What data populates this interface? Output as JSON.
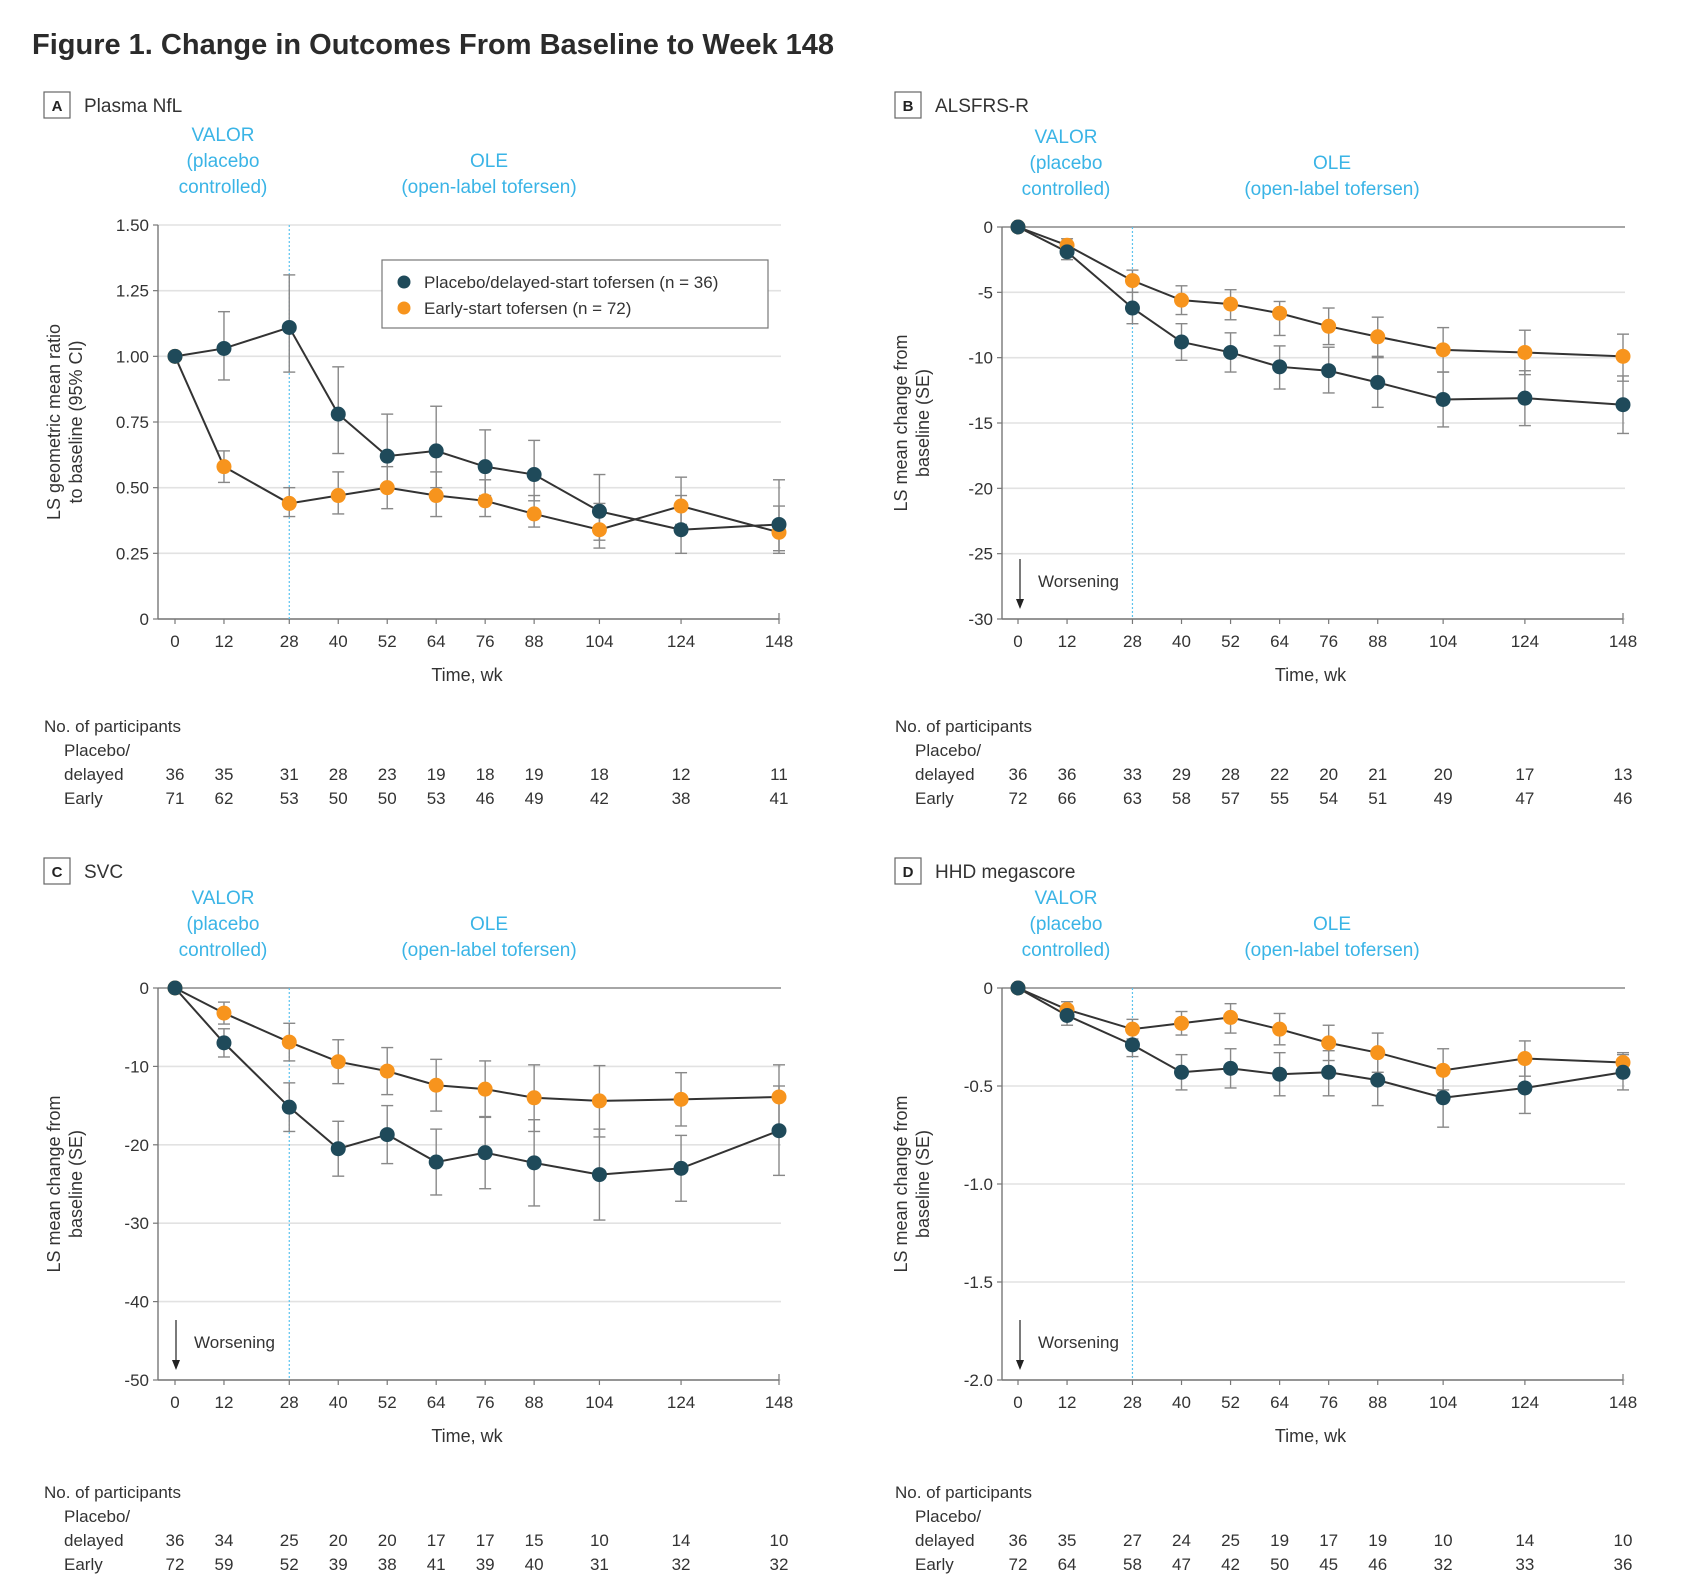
{
  "figure": {
    "title": "Figure 1.  Change in Outcomes From Baseline to Week 148"
  },
  "colors": {
    "placebo": "#1f4a5a",
    "early": "#f7941d",
    "period_text": "#3ab4e6",
    "valor_line": "#5bc3ee",
    "grid": "#e2e2e2",
    "axis": "#777777",
    "line": "#333333",
    "errorbar": "#888888"
  },
  "periods": {
    "valor": [
      "VALOR",
      "(placebo",
      "controlled)"
    ],
    "ole": [
      "OLE",
      "(open-label tofersen)"
    ]
  },
  "legend": {
    "placebo": "Placebo/delayed-start tofersen (n = 36)",
    "early": "Early-start tofersen (n = 72)"
  },
  "table_labels": {
    "header": "No. of participants",
    "placebo_line1": "Placebo/",
    "placebo_line2": "delayed",
    "early": "Early"
  },
  "worsening_label": "Worsening",
  "chart_data": [
    {
      "type": "line",
      "panel": "A",
      "title": "Plasma NfL",
      "xlabel": "Time, wk",
      "ylabel": [
        "LS geometric mean ratio",
        "to baseline (95% CI)"
      ],
      "x": [
        0,
        12,
        28,
        40,
        52,
        64,
        76,
        88,
        104,
        124,
        148
      ],
      "xticks": [
        "0",
        "12",
        "28",
        "40",
        "52",
        "64",
        "76",
        "88",
        "104",
        "124",
        "148"
      ],
      "ylim": [
        0,
        1.5
      ],
      "yticks": [
        0,
        0.25,
        0.5,
        0.75,
        1.0,
        1.25,
        1.5
      ],
      "ytick_labels": [
        "0",
        "0.25",
        "0.50",
        "0.75",
        "1.00",
        "1.25",
        "1.50"
      ],
      "vline_x": 28,
      "grid": true,
      "legend_position": "top-right",
      "worsening": false,
      "series": [
        {
          "name": "Placebo/delayed-start tofersen (n = 36)",
          "key": "placebo",
          "values": [
            1.0,
            1.03,
            1.11,
            0.78,
            0.62,
            0.64,
            0.58,
            0.55,
            0.41,
            0.34,
            0.36
          ],
          "lower": [
            null,
            0.91,
            0.94,
            0.63,
            0.49,
            0.5,
            0.47,
            0.45,
            0.3,
            0.25,
            0.25
          ],
          "upper": [
            null,
            1.17,
            1.31,
            0.96,
            0.78,
            0.81,
            0.72,
            0.68,
            0.55,
            0.54,
            0.53
          ]
        },
        {
          "name": "Early-start tofersen (n = 72)",
          "key": "early",
          "values": [
            1.0,
            0.58,
            0.44,
            0.47,
            0.5,
            0.47,
            0.45,
            0.4,
            0.34,
            0.43,
            0.33
          ],
          "lower": [
            null,
            0.52,
            0.39,
            0.4,
            0.42,
            0.39,
            0.39,
            0.35,
            0.27,
            0.36,
            0.26
          ],
          "upper": [
            null,
            0.64,
            0.5,
            0.56,
            0.58,
            0.56,
            0.53,
            0.47,
            0.44,
            0.47,
            0.43
          ]
        }
      ],
      "participants": {
        "placebo": [
          "36",
          "35",
          "31",
          "28",
          "23",
          "19",
          "18",
          "19",
          "18",
          "12",
          "11"
        ],
        "early": [
          "71",
          "62",
          "53",
          "50",
          "50",
          "53",
          "46",
          "49",
          "42",
          "38",
          "41"
        ]
      }
    },
    {
      "type": "line",
      "panel": "B",
      "title": "ALSFRS-R",
      "xlabel": "Time, wk",
      "ylabel": [
        "LS mean change from",
        "baseline (SE)"
      ],
      "x": [
        0,
        12,
        28,
        40,
        52,
        64,
        76,
        88,
        104,
        124,
        148
      ],
      "xticks": [
        "0",
        "12",
        "28",
        "40",
        "52",
        "64",
        "76",
        "88",
        "104",
        "124",
        "148"
      ],
      "ylim": [
        -30,
        0
      ],
      "yticks": [
        -30,
        -25,
        -20,
        -15,
        -10,
        -5,
        0
      ],
      "ytick_labels": [
        "-30",
        "-25",
        "-20",
        "-15",
        "-10",
        "-5",
        "0"
      ],
      "vline_x": 28,
      "grid": true,
      "worsening": true,
      "series": [
        {
          "name": "Placebo/delayed-start tofersen (n = 36)",
          "key": "placebo",
          "values": [
            0,
            -1.9,
            -6.2,
            -8.8,
            -9.6,
            -10.7,
            -11.0,
            -11.9,
            -13.2,
            -13.1,
            -13.6
          ],
          "lower": [
            null,
            -2.5,
            -7.4,
            -10.2,
            -11.1,
            -12.4,
            -12.7,
            -13.8,
            -15.3,
            -15.2,
            -15.8
          ],
          "upper": [
            null,
            -1.3,
            -5.0,
            -7.4,
            -8.1,
            -9.1,
            -9.2,
            -10.0,
            -11.1,
            -11.0,
            -11.4
          ]
        },
        {
          "name": "Early-start tofersen (n = 72)",
          "key": "early",
          "values": [
            0,
            -1.4,
            -4.1,
            -5.6,
            -5.9,
            -6.6,
            -7.6,
            -8.4,
            -9.4,
            -9.6,
            -9.9
          ],
          "lower": [
            null,
            -1.9,
            -5.0,
            -6.7,
            -7.1,
            -8.3,
            -9.0,
            -9.9,
            -11.1,
            -11.3,
            -11.8
          ],
          "upper": [
            null,
            -0.9,
            -3.3,
            -4.5,
            -4.8,
            -5.7,
            -6.2,
            -6.9,
            -7.7,
            -7.9,
            -8.2
          ]
        }
      ],
      "participants": {
        "placebo": [
          "36",
          "36",
          "33",
          "29",
          "28",
          "22",
          "20",
          "21",
          "20",
          "17",
          "13"
        ],
        "early": [
          "72",
          "66",
          "63",
          "58",
          "57",
          "55",
          "54",
          "51",
          "49",
          "47",
          "46"
        ]
      }
    },
    {
      "type": "line",
      "panel": "C",
      "title": "SVC",
      "xlabel": "Time, wk",
      "ylabel": [
        "LS mean change from",
        "baseline (SE)"
      ],
      "x": [
        0,
        12,
        28,
        40,
        52,
        64,
        76,
        88,
        104,
        124,
        148
      ],
      "xticks": [
        "0",
        "12",
        "28",
        "40",
        "52",
        "64",
        "76",
        "88",
        "104",
        "124",
        "148"
      ],
      "ylim": [
        -50,
        0
      ],
      "yticks": [
        -50,
        -40,
        -30,
        -20,
        -10,
        0
      ],
      "ytick_labels": [
        "-50",
        "-40",
        "-30",
        "-20",
        "-10",
        "0"
      ],
      "vline_x": 28,
      "grid": true,
      "worsening": true,
      "series": [
        {
          "name": "Placebo/delayed-start tofersen (n = 36)",
          "key": "placebo",
          "values": [
            0,
            -7.0,
            -15.2,
            -20.5,
            -18.7,
            -22.2,
            -21.0,
            -22.3,
            -23.8,
            -23.0,
            -18.2
          ],
          "lower": [
            null,
            -8.8,
            -18.3,
            -24.0,
            -22.4,
            -26.4,
            -25.6,
            -27.8,
            -29.6,
            -27.2,
            -23.9
          ],
          "upper": [
            null,
            -5.2,
            -12.1,
            -17.0,
            -15.0,
            -18.0,
            -16.4,
            -16.8,
            -18.0,
            -18.8,
            -12.5
          ]
        },
        {
          "name": "Early-start tofersen (n = 72)",
          "key": "early",
          "values": [
            0,
            -3.2,
            -6.9,
            -9.4,
            -10.6,
            -12.4,
            -12.9,
            -14.0,
            -14.4,
            -14.2,
            -13.9
          ],
          "lower": [
            null,
            -4.6,
            -9.3,
            -12.2,
            -13.6,
            -15.7,
            -16.5,
            -18.3,
            -19.0,
            -17.6,
            -18.1
          ],
          "upper": [
            null,
            -1.8,
            -4.5,
            -6.6,
            -7.6,
            -9.1,
            -9.3,
            -9.8,
            -9.9,
            -10.8,
            -9.8
          ]
        }
      ],
      "participants": {
        "placebo": [
          "36",
          "34",
          "25",
          "20",
          "20",
          "17",
          "17",
          "15",
          "10",
          "14",
          "10"
        ],
        "early": [
          "72",
          "59",
          "52",
          "39",
          "38",
          "41",
          "39",
          "40",
          "31",
          "32",
          "32"
        ]
      }
    },
    {
      "type": "line",
      "panel": "D",
      "title": "HHD megascore",
      "xlabel": "Time, wk",
      "ylabel": [
        "LS mean change from",
        "baseline (SE)"
      ],
      "x": [
        0,
        12,
        28,
        40,
        52,
        64,
        76,
        88,
        104,
        124,
        148
      ],
      "xticks": [
        "0",
        "12",
        "28",
        "40",
        "52",
        "64",
        "76",
        "88",
        "104",
        "124",
        "148"
      ],
      "ylim": [
        -2.0,
        0
      ],
      "yticks": [
        -2.0,
        -1.5,
        -1.0,
        -0.5,
        0
      ],
      "ytick_labels": [
        "-2.0",
        "-1.5",
        "-1.0",
        "-0.5",
        "0"
      ],
      "vline_x": 28,
      "grid": true,
      "worsening": true,
      "series": [
        {
          "name": "Placebo/delayed-start tofersen (n = 36)",
          "key": "placebo",
          "values": [
            0,
            -0.14,
            -0.29,
            -0.43,
            -0.41,
            -0.44,
            -0.43,
            -0.47,
            -0.56,
            -0.51,
            -0.43
          ],
          "lower": [
            null,
            -0.19,
            -0.35,
            -0.52,
            -0.51,
            -0.55,
            -0.55,
            -0.6,
            -0.71,
            -0.64,
            -0.52
          ],
          "upper": [
            null,
            -0.09,
            -0.23,
            -0.34,
            -0.31,
            -0.33,
            -0.32,
            -0.34,
            -0.42,
            -0.38,
            -0.34
          ]
        },
        {
          "name": "Early-start tofersen (n = 72)",
          "key": "early",
          "values": [
            0,
            -0.11,
            -0.21,
            -0.18,
            -0.15,
            -0.21,
            -0.28,
            -0.33,
            -0.42,
            -0.36,
            -0.38
          ],
          "lower": [
            null,
            -0.15,
            -0.26,
            -0.24,
            -0.23,
            -0.29,
            -0.37,
            -0.43,
            -0.52,
            -0.45,
            -0.43
          ],
          "upper": [
            null,
            -0.07,
            -0.16,
            -0.12,
            -0.08,
            -0.13,
            -0.19,
            -0.23,
            -0.31,
            -0.27,
            -0.33
          ]
        }
      ],
      "participants": {
        "placebo": [
          "36",
          "35",
          "27",
          "24",
          "25",
          "19",
          "17",
          "19",
          "10",
          "14",
          "10"
        ],
        "early": [
          "72",
          "64",
          "58",
          "47",
          "42",
          "50",
          "45",
          "46",
          "32",
          "33",
          "36"
        ]
      }
    }
  ]
}
